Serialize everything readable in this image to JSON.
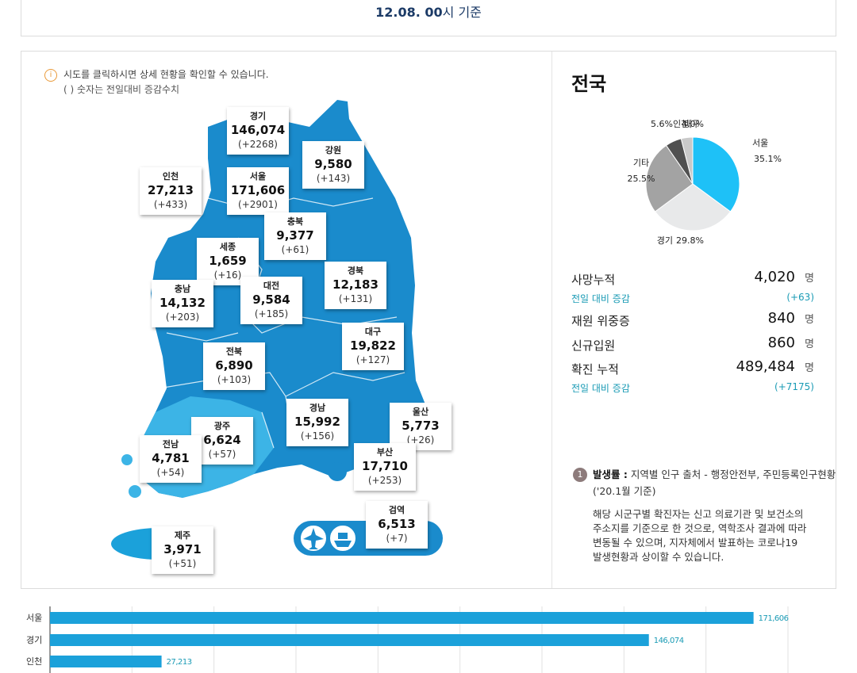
{
  "header": {
    "date": "12.08. 00",
    "suffix": "시 기준"
  },
  "map": {
    "notice": "시도를 클릭하시면 상세 현황을 확인할 수 있습니다.",
    "note": "( ) 숫자는 전일대비 증감수치",
    "regions": [
      {
        "name": "경기",
        "total": "146,074",
        "change": "(+2268)"
      },
      {
        "name": "강원",
        "total": "9,580",
        "change": "(+143)"
      },
      {
        "name": "인천",
        "total": "27,213",
        "change": "(+433)"
      },
      {
        "name": "서울",
        "total": "171,606",
        "change": "(+2901)"
      },
      {
        "name": "충북",
        "total": "9,377",
        "change": "(+61)"
      },
      {
        "name": "세종",
        "total": "1,659",
        "change": "(+16)"
      },
      {
        "name": "경북",
        "total": "12,183",
        "change": "(+131)"
      },
      {
        "name": "대전",
        "total": "9,584",
        "change": "(+185)"
      },
      {
        "name": "충남",
        "total": "14,132",
        "change": "(+203)"
      },
      {
        "name": "대구",
        "total": "19,822",
        "change": "(+127)"
      },
      {
        "name": "전북",
        "total": "6,890",
        "change": "(+103)"
      },
      {
        "name": "울산",
        "total": "5,773",
        "change": "(+26)"
      },
      {
        "name": "경남",
        "total": "15,992",
        "change": "(+156)"
      },
      {
        "name": "광주",
        "total": "6,624",
        "change": "(+57)"
      },
      {
        "name": "전남",
        "total": "4,781",
        "change": "(+54)"
      },
      {
        "name": "부산",
        "total": "17,710",
        "change": "(+253)"
      },
      {
        "name": "검역",
        "total": "6,513",
        "change": "(+7)"
      },
      {
        "name": "제주",
        "total": "3,971",
        "change": "(+51)"
      }
    ]
  },
  "summary": {
    "title": "전국",
    "stats": [
      {
        "label": "사망누적",
        "value": "4,020",
        "unit": "명",
        "change_label": "전일 대비 증감",
        "change": "(+63)"
      },
      {
        "label": "재원 위중증",
        "value": "840",
        "unit": "명"
      },
      {
        "label": "신규입원",
        "value": "860",
        "unit": "명"
      },
      {
        "label": "확진 누적",
        "value": "489,484",
        "unit": "명",
        "change_label": "전일 대비 증감",
        "change": "(+7175)"
      }
    ],
    "footnote": {
      "number": "1",
      "title": "발생률 :",
      "source": "지역별 인구 출처 - 행정안전부, 주민등록인구현황",
      "basis": "('20.1월 기준)",
      "description": [
        "해당 시군구별 확진자는 신고 의료기관 및 보건소의",
        "주소지를 기준으로 한 것으로, 역학조사 결과에 따라",
        "변동될 수 있으며, 지자체에서 발표하는 코로나19",
        "발생현황과 상이할 수 있습니다."
      ]
    }
  },
  "chart_data": [
    {
      "type": "pie",
      "categories": [
        "서울",
        "경기",
        "기타",
        "인천",
        "대구"
      ],
      "values": [
        35.1,
        29.8,
        25.5,
        5.6,
        4.0
      ],
      "value_labels": [
        "35.1%",
        "29.8%",
        "25.5%",
        "5.6%",
        "4.0%"
      ],
      "colors": [
        "#1ec1f7",
        "#e8e9ea",
        "#a3a3a3",
        "#505050",
        "#c9c9c9"
      ]
    },
    {
      "type": "bar",
      "orientation": "horizontal",
      "categories": [
        "서울",
        "경기",
        "인천"
      ],
      "values": [
        171606,
        146074,
        27213
      ],
      "value_labels": [
        "171,606",
        "146,074",
        "27,213"
      ],
      "color": "#1ba1da",
      "xlim": [
        0,
        180000
      ],
      "xticks": [
        0,
        20000,
        40000,
        60000,
        80000,
        100000,
        120000,
        140000,
        160000,
        180000
      ],
      "grid": true
    }
  ]
}
